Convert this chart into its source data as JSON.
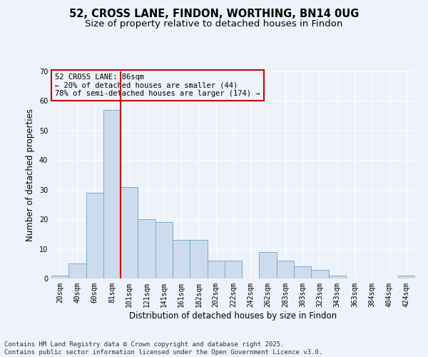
{
  "title1": "52, CROSS LANE, FINDON, WORTHING, BN14 0UG",
  "title2": "Size of property relative to detached houses in Findon",
  "xlabel": "Distribution of detached houses by size in Findon",
  "ylabel": "Number of detached properties",
  "categories": [
    "20sqm",
    "40sqm",
    "60sqm",
    "81sqm",
    "101sqm",
    "121sqm",
    "141sqm",
    "161sqm",
    "182sqm",
    "202sqm",
    "222sqm",
    "242sqm",
    "262sqm",
    "283sqm",
    "303sqm",
    "323sqm",
    "343sqm",
    "363sqm",
    "384sqm",
    "404sqm",
    "424sqm"
  ],
  "values": [
    1,
    5,
    29,
    57,
    31,
    20,
    19,
    13,
    13,
    6,
    6,
    0,
    9,
    6,
    4,
    3,
    1,
    0,
    0,
    0,
    1
  ],
  "bar_color": "#ccdcee",
  "bar_edge_color": "#7aaace",
  "background_color": "#eef2fb",
  "grid_color": "#ffffff",
  "vline_bin_index": 3,
  "vline_color": "#cc0000",
  "annotation_text": "52 CROSS LANE: 86sqm\n← 20% of detached houses are smaller (44)\n78% of semi-detached houses are larger (174) →",
  "annotation_box_color": "#cc0000",
  "ylim": [
    0,
    70
  ],
  "yticks": [
    0,
    10,
    20,
    30,
    40,
    50,
    60,
    70
  ],
  "footer_line1": "Contains HM Land Registry data © Crown copyright and database right 2025.",
  "footer_line2": "Contains public sector information licensed under the Open Government Licence v3.0.",
  "title1_fontsize": 10.5,
  "title2_fontsize": 9.5,
  "tick_fontsize": 7,
  "label_fontsize": 8.5,
  "footer_fontsize": 6.5,
  "ann_fontsize": 7.5
}
